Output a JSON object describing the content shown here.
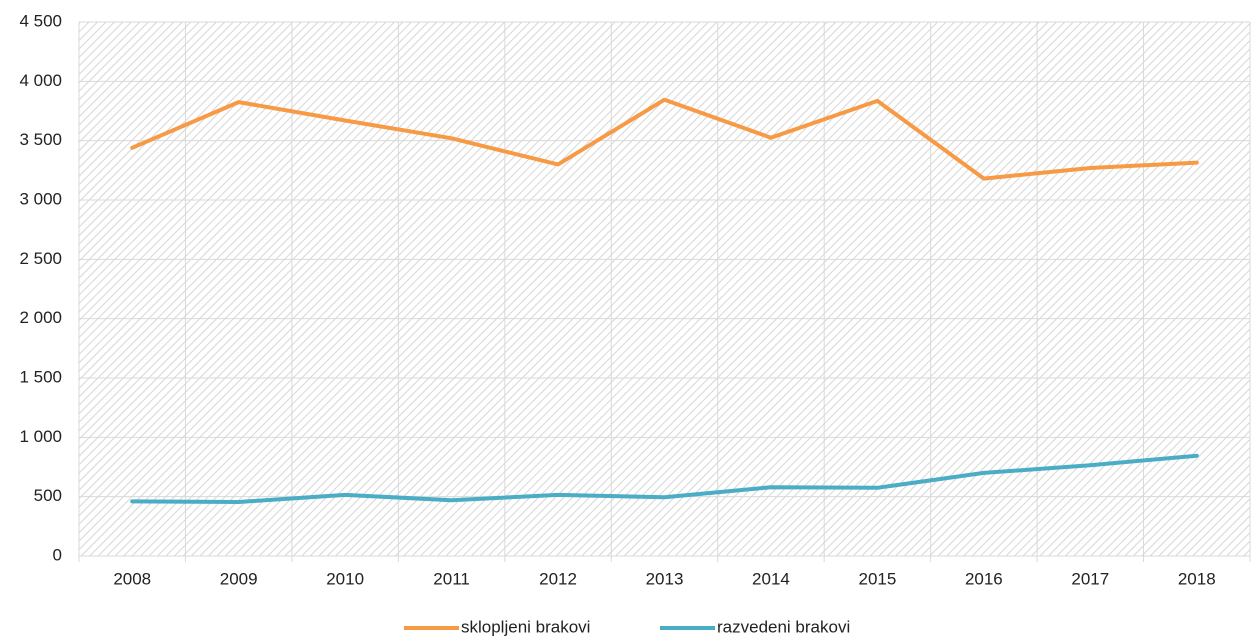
{
  "chart_data": {
    "type": "line",
    "categories": [
      "2008",
      "2009",
      "2010",
      "2011",
      "2012",
      "2013",
      "2014",
      "2015",
      "2016",
      "2017",
      "2018"
    ],
    "series": [
      {
        "name": "sklopljeni brakovi",
        "color": "#f79a45",
        "values": [
          3440,
          3825,
          3670,
          3520,
          3300,
          3845,
          3525,
          3835,
          3180,
          3270,
          3315
        ]
      },
      {
        "name": "razvedeni brakovi",
        "color": "#4bacc6",
        "values": [
          460,
          455,
          515,
          470,
          515,
          495,
          580,
          575,
          700,
          765,
          845
        ]
      }
    ],
    "ylim": [
      0,
      4500
    ],
    "yticks": [
      0,
      500,
      {
        "value": 1000,
        "label": "1 000"
      },
      {
        "value": 1500,
        "label": "1 500"
      },
      {
        "value": 2000,
        "label": "2 000"
      },
      {
        "value": 2500,
        "label": "2 500"
      },
      {
        "value": 3000,
        "label": "3 000"
      },
      {
        "value": 3500,
        "label": "3 500"
      },
      {
        "value": 4000,
        "label": "4 000"
      },
      {
        "value": 4500,
        "label": "4 500"
      }
    ],
    "grid": true,
    "legend": "bottom"
  }
}
